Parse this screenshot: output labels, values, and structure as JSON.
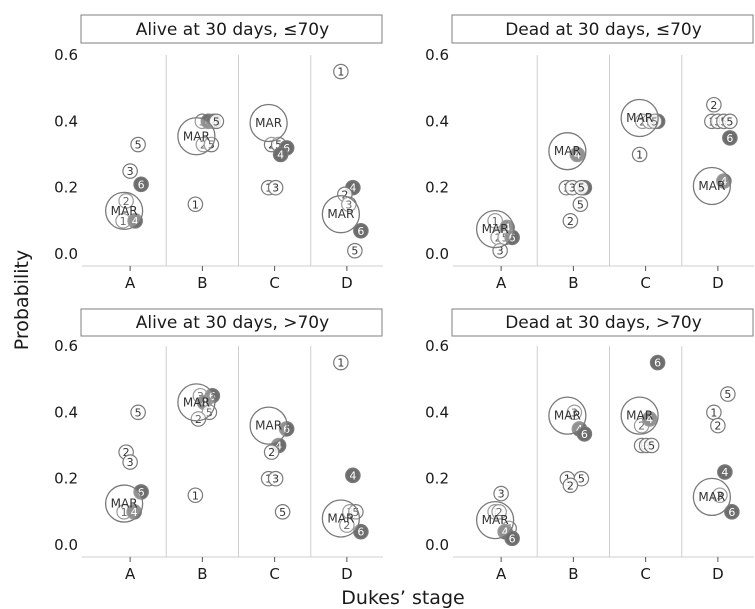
{
  "chart_data": {
    "type": "scatter",
    "xlabel": "Dukes’ stage",
    "ylabel": "Probability",
    "categories": [
      "A",
      "B",
      "C",
      "D"
    ],
    "ylim": [
      0,
      0.6
    ],
    "yticks": [
      0.0,
      0.2,
      0.4,
      0.6
    ],
    "ytick_labels": [
      "0.0",
      "0.2",
      "0.4",
      "0.6"
    ],
    "mar_label": "MAR",
    "filled_labels": [
      "4",
      "6"
    ],
    "colors": {
      "filled": "#6d6d6d",
      "outline": "#7a7a7a",
      "grid": "#cfcfcf",
      "strip_border": "#7f7f7f"
    },
    "panels": [
      {
        "title": "Alive at 30 days, ≤70y",
        "groups": [
          {
            "stage": "A",
            "mar": 0.13,
            "points": [
              {
                "label": "5",
                "y": 0.33,
                "dx": 8
              },
              {
                "label": "3",
                "y": 0.25,
                "dx": 0
              },
              {
                "label": "6",
                "y": 0.21,
                "dx": 11
              },
              {
                "label": "2",
                "y": 0.16,
                "dx": -4
              },
              {
                "label": "1",
                "y": 0.1,
                "dx": -7
              },
              {
                "label": "4",
                "y": 0.1,
                "dx": 5
              }
            ]
          },
          {
            "stage": "B",
            "mar": 0.355,
            "points": [
              {
                "label": "3",
                "y": 0.4,
                "dx": 0
              },
              {
                "label": "4",
                "y": 0.4,
                "dx": 6
              },
              {
                "label": "6",
                "y": 0.4,
                "dx": 11
              },
              {
                "label": "5",
                "y": 0.4,
                "dx": 14
              },
              {
                "label": "2",
                "y": 0.33,
                "dx": 1
              },
              {
                "label": "5",
                "y": 0.33,
                "dx": 9
              },
              {
                "label": "1",
                "y": 0.15,
                "dx": -7
              }
            ]
          },
          {
            "stage": "C",
            "mar": 0.395,
            "points": [
              {
                "label": "2",
                "y": 0.33,
                "dx": -3
              },
              {
                "label": "5",
                "y": 0.33,
                "dx": 4
              },
              {
                "label": "6",
                "y": 0.32,
                "dx": 12
              },
              {
                "label": "4",
                "y": 0.3,
                "dx": 6
              },
              {
                "label": "1",
                "y": 0.2,
                "dx": -6
              },
              {
                "label": "3",
                "y": 0.2,
                "dx": 1
              }
            ]
          },
          {
            "stage": "D",
            "mar": 0.12,
            "points": [
              {
                "label": "1",
                "y": 0.55,
                "dx": -6
              },
              {
                "label": "4",
                "y": 0.2,
                "dx": 6
              },
              {
                "label": "2",
                "y": 0.18,
                "dx": -2
              },
              {
                "label": "3",
                "y": 0.15,
                "dx": 2
              },
              {
                "label": "6",
                "y": 0.07,
                "dx": 14
              },
              {
                "label": "5",
                "y": 0.01,
                "dx": 8
              }
            ]
          }
        ]
      },
      {
        "title": "Dead at 30 days, ≤70y",
        "groups": [
          {
            "stage": "A",
            "mar": 0.075,
            "points": [
              {
                "label": "1",
                "y": 0.1,
                "dx": -6
              },
              {
                "label": "4",
                "y": 0.08,
                "dx": 6
              },
              {
                "label": "2",
                "y": 0.05,
                "dx": -3
              },
              {
                "label": "5",
                "y": 0.05,
                "dx": 4
              },
              {
                "label": "6",
                "y": 0.05,
                "dx": 11
              },
              {
                "label": "3",
                "y": 0.01,
                "dx": -1
              }
            ]
          },
          {
            "stage": "B",
            "mar": 0.31,
            "points": [
              {
                "label": "4",
                "y": 0.3,
                "dx": 4
              },
              {
                "label": "1",
                "y": 0.2,
                "dx": -7
              },
              {
                "label": "3",
                "y": 0.2,
                "dx": -1
              },
              {
                "label": "6",
                "y": 0.2,
                "dx": 11
              },
              {
                "label": "5",
                "y": 0.2,
                "dx": 8
              },
              {
                "label": "5",
                "y": 0.15,
                "dx": 7
              },
              {
                "label": "2",
                "y": 0.1,
                "dx": -3
              }
            ]
          },
          {
            "stage": "C",
            "mar": 0.41,
            "points": [
              {
                "label": "2",
                "y": 0.4,
                "dx": -3
              },
              {
                "label": "3",
                "y": 0.4,
                "dx": 4
              },
              {
                "label": "6",
                "y": 0.4,
                "dx": 12
              },
              {
                "label": "5",
                "y": 0.4,
                "dx": 9
              },
              {
                "label": "1",
                "y": 0.3,
                "dx": -6
              }
            ]
          },
          {
            "stage": "D",
            "mar": 0.205,
            "points": [
              {
                "label": "2",
                "y": 0.45,
                "dx": -4
              },
              {
                "label": "1",
                "y": 0.4,
                "dx": -6
              },
              {
                "label": "3",
                "y": 0.4,
                "dx": 0
              },
              {
                "label": "5",
                "y": 0.4,
                "dx": 6
              },
              {
                "label": "5",
                "y": 0.4,
                "dx": 12
              },
              {
                "label": "6",
                "y": 0.35,
                "dx": 12
              },
              {
                "label": "4",
                "y": 0.22,
                "dx": 6
              }
            ]
          }
        ]
      },
      {
        "title": "Alive at 30 days, >70y",
        "groups": [
          {
            "stage": "A",
            "mar": 0.125,
            "points": [
              {
                "label": "5",
                "y": 0.4,
                "dx": 8
              },
              {
                "label": "2",
                "y": 0.28,
                "dx": -4
              },
              {
                "label": "3",
                "y": 0.25,
                "dx": 0
              },
              {
                "label": "6",
                "y": 0.16,
                "dx": 11
              },
              {
                "label": "1",
                "y": 0.1,
                "dx": -6
              },
              {
                "label": "4",
                "y": 0.1,
                "dx": 4
              }
            ]
          },
          {
            "stage": "B",
            "mar": 0.43,
            "points": [
              {
                "label": "3",
                "y": 0.45,
                "dx": -2
              },
              {
                "label": "6",
                "y": 0.45,
                "dx": 10
              },
              {
                "label": "4",
                "y": 0.43,
                "dx": 2
              },
              {
                "label": "5",
                "y": 0.4,
                "dx": 7
              },
              {
                "label": "2",
                "y": 0.38,
                "dx": -4
              },
              {
                "label": "1",
                "y": 0.15,
                "dx": -7
              }
            ]
          },
          {
            "stage": "C",
            "mar": 0.36,
            "points": [
              {
                "label": "6",
                "y": 0.35,
                "dx": 12
              },
              {
                "label": "4",
                "y": 0.3,
                "dx": 4
              },
              {
                "label": "2",
                "y": 0.28,
                "dx": -3
              },
              {
                "label": "1",
                "y": 0.2,
                "dx": -6
              },
              {
                "label": "3",
                "y": 0.2,
                "dx": 1
              },
              {
                "label": "5",
                "y": 0.1,
                "dx": 8
              }
            ]
          },
          {
            "stage": "D",
            "mar": 0.08,
            "points": [
              {
                "label": "1",
                "y": 0.55,
                "dx": -6
              },
              {
                "label": "4",
                "y": 0.21,
                "dx": 6
              },
              {
                "label": "3",
                "y": 0.1,
                "dx": 3
              },
              {
                "label": "5",
                "y": 0.1,
                "dx": 9
              },
              {
                "label": "2",
                "y": 0.06,
                "dx": 0
              },
              {
                "label": "6",
                "y": 0.04,
                "dx": 14
              }
            ]
          }
        ]
      },
      {
        "title": "Dead at 30 days, >70y",
        "groups": [
          {
            "stage": "A",
            "mar": 0.075,
            "points": [
              {
                "label": "3",
                "y": 0.155,
                "dx": 0
              },
              {
                "label": "1",
                "y": 0.1,
                "dx": -6
              },
              {
                "label": "2",
                "y": 0.1,
                "dx": -2
              },
              {
                "label": "5",
                "y": 0.05,
                "dx": 8
              },
              {
                "label": "4",
                "y": 0.04,
                "dx": 4
              },
              {
                "label": "6",
                "y": 0.02,
                "dx": 11
              }
            ]
          },
          {
            "stage": "B",
            "mar": 0.39,
            "points": [
              {
                "label": "3",
                "y": 0.4,
                "dx": 1
              },
              {
                "label": "4",
                "y": 0.35,
                "dx": 6
              },
              {
                "label": "6",
                "y": 0.335,
                "dx": 11
              },
              {
                "label": "1",
                "y": 0.2,
                "dx": -6
              },
              {
                "label": "5",
                "y": 0.2,
                "dx": 8
              },
              {
                "label": "2",
                "y": 0.18,
                "dx": -3
              }
            ]
          },
          {
            "stage": "C",
            "mar": 0.39,
            "points": [
              {
                "label": "6",
                "y": 0.55,
                "dx": 12
              },
              {
                "label": "2",
                "y": 0.36,
                "dx": -4
              },
              {
                "label": "4",
                "y": 0.38,
                "dx": 4
              },
              {
                "label": "1",
                "y": 0.3,
                "dx": -4
              },
              {
                "label": "3",
                "y": 0.3,
                "dx": 1
              },
              {
                "label": "5",
                "y": 0.3,
                "dx": 6
              }
            ]
          },
          {
            "stage": "D",
            "mar": 0.145,
            "points": [
              {
                "label": "5",
                "y": 0.455,
                "dx": 10
              },
              {
                "label": "1",
                "y": 0.4,
                "dx": -4
              },
              {
                "label": "2",
                "y": 0.36,
                "dx": 0
              },
              {
                "label": "4",
                "y": 0.22,
                "dx": 7
              },
              {
                "label": "3",
                "y": 0.15,
                "dx": 2
              },
              {
                "label": "6",
                "y": 0.1,
                "dx": 14
              }
            ]
          }
        ]
      }
    ]
  }
}
